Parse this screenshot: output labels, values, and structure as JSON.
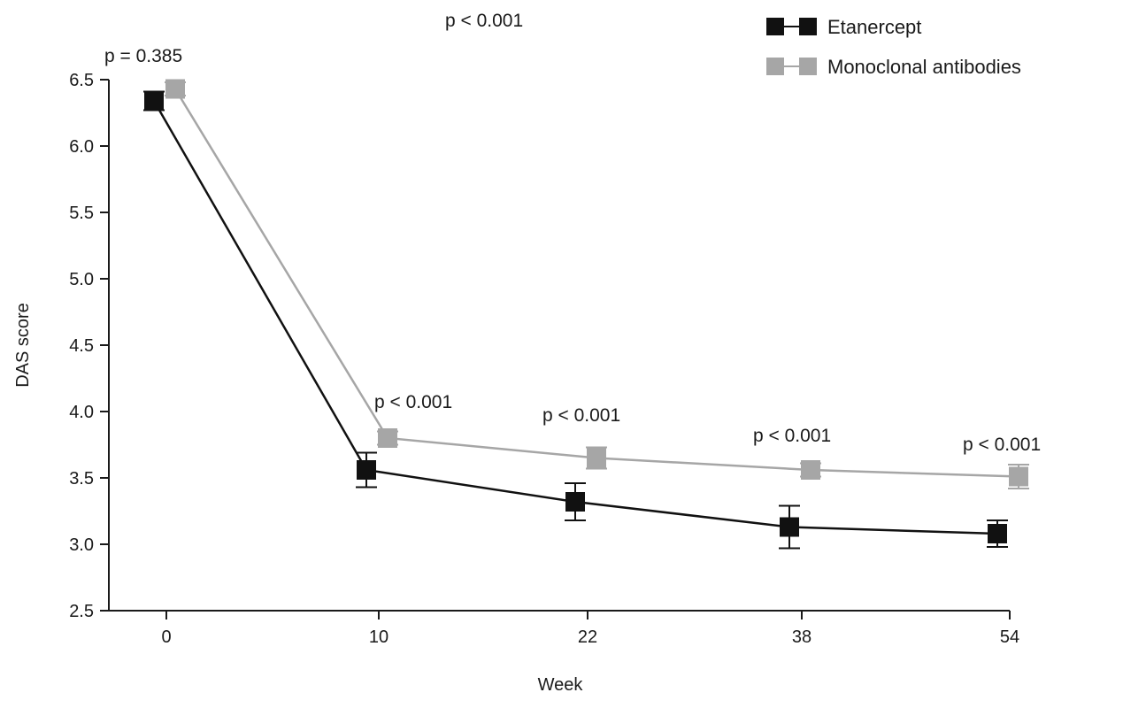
{
  "chart_data": {
    "type": "line",
    "xlabel": "Week",
    "ylabel": "DAS score",
    "x_categories": [
      "0",
      "10",
      "22",
      "38",
      "54"
    ],
    "ylim": [
      2.5,
      6.5
    ],
    "y_ticks": [
      "2.5",
      "3.0",
      "3.5",
      "4.0",
      "4.5",
      "5.0",
      "5.5",
      "6.0",
      "6.5"
    ],
    "grid": false,
    "legend_position": "top-right",
    "series": [
      {
        "name": "Etanercept",
        "color": "#111111",
        "values": [
          6.34,
          3.56,
          3.32,
          3.13,
          3.08
        ],
        "error": [
          0.07,
          0.13,
          0.14,
          0.16,
          0.1
        ]
      },
      {
        "name": "Monoclonal antibodies",
        "color": "#a6a6a6",
        "values": [
          6.43,
          3.8,
          3.65,
          3.56,
          3.51
        ],
        "error": [
          0.05,
          0.05,
          0.08,
          0.05,
          0.09
        ]
      }
    ],
    "annotations": [
      "p = 0.385",
      "p < 0.001",
      "p < 0.001",
      "p < 0.001",
      "p < 0.001",
      "p < 0.001"
    ]
  }
}
